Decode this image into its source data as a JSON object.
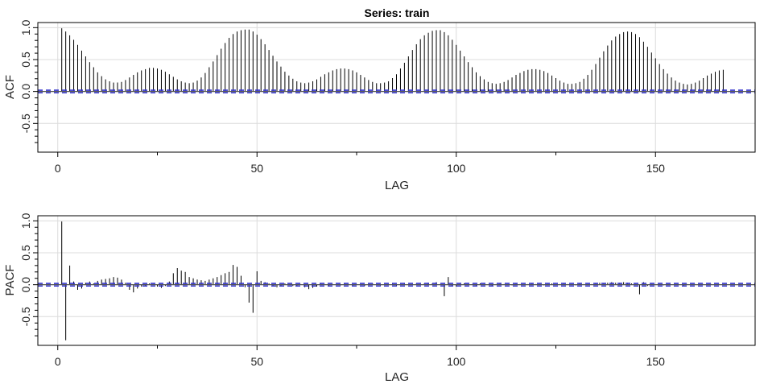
{
  "chart_data": [
    {
      "type": "bar",
      "panel": "acf",
      "title": "Series:  train",
      "xlabel": "LAG",
      "ylabel": "ACF",
      "xlim": [
        -5,
        175
      ],
      "ylim": [
        -0.95,
        1.08
      ],
      "xticks": [
        0,
        50,
        100,
        150
      ],
      "yticks": [
        -0.5,
        0,
        0.5,
        1
      ],
      "ytick_labels": [
        "-0.5",
        "0.0",
        "0.5",
        "1.0"
      ],
      "grid": true,
      "confidence_bound": 0.02,
      "lags": [
        1,
        2,
        3,
        4,
        5,
        6,
        7,
        8,
        9,
        10,
        11,
        12,
        13,
        14,
        15,
        16,
        17,
        18,
        19,
        20,
        21,
        22,
        23,
        24,
        25,
        26,
        27,
        28,
        29,
        30,
        31,
        32,
        33,
        34,
        35,
        36,
        37,
        38,
        39,
        40,
        41,
        42,
        43,
        44,
        45,
        46,
        47,
        48,
        49,
        50,
        51,
        52,
        53,
        54,
        55,
        56,
        57,
        58,
        59,
        60,
        61,
        62,
        63,
        64,
        65,
        66,
        67,
        68,
        69,
        70,
        71,
        72,
        73,
        74,
        75,
        76,
        77,
        78,
        79,
        80,
        81,
        82,
        83,
        84,
        85,
        86,
        87,
        88,
        89,
        90,
        91,
        92,
        93,
        94,
        95,
        96,
        97,
        98,
        99,
        100,
        101,
        102,
        103,
        104,
        105,
        106,
        107,
        108,
        109,
        110,
        111,
        112,
        113,
        114,
        115,
        116,
        117,
        118,
        119,
        120,
        121,
        122,
        123,
        124,
        125,
        126,
        127,
        128,
        129,
        130,
        131,
        132,
        133,
        134,
        135,
        136,
        137,
        138,
        139,
        140,
        141,
        142,
        143,
        144,
        145,
        146,
        147,
        148,
        149,
        150,
        151,
        152,
        153,
        154,
        155,
        156,
        157,
        158,
        159,
        160,
        161,
        162,
        163,
        164,
        165,
        166,
        167
      ],
      "values": [
        0.99,
        0.94,
        0.88,
        0.81,
        0.73,
        0.64,
        0.55,
        0.46,
        0.38,
        0.3,
        0.24,
        0.19,
        0.16,
        0.14,
        0.14,
        0.15,
        0.18,
        0.22,
        0.26,
        0.3,
        0.33,
        0.35,
        0.37,
        0.37,
        0.36,
        0.34,
        0.31,
        0.27,
        0.23,
        0.19,
        0.16,
        0.14,
        0.13,
        0.14,
        0.17,
        0.22,
        0.29,
        0.38,
        0.47,
        0.57,
        0.67,
        0.76,
        0.84,
        0.9,
        0.94,
        0.96,
        0.97,
        0.97,
        0.94,
        0.89,
        0.82,
        0.74,
        0.65,
        0.56,
        0.47,
        0.39,
        0.31,
        0.25,
        0.2,
        0.16,
        0.14,
        0.13,
        0.14,
        0.16,
        0.19,
        0.23,
        0.27,
        0.3,
        0.33,
        0.35,
        0.36,
        0.36,
        0.35,
        0.33,
        0.3,
        0.26,
        0.22,
        0.18,
        0.15,
        0.13,
        0.13,
        0.14,
        0.16,
        0.21,
        0.27,
        0.36,
        0.45,
        0.55,
        0.65,
        0.74,
        0.82,
        0.88,
        0.92,
        0.95,
        0.96,
        0.96,
        0.93,
        0.88,
        0.81,
        0.73,
        0.64,
        0.55,
        0.46,
        0.38,
        0.3,
        0.24,
        0.19,
        0.15,
        0.13,
        0.12,
        0.13,
        0.15,
        0.18,
        0.22,
        0.26,
        0.29,
        0.32,
        0.34,
        0.35,
        0.35,
        0.34,
        0.32,
        0.29,
        0.25,
        0.21,
        0.17,
        0.14,
        0.12,
        0.12,
        0.13,
        0.15,
        0.2,
        0.26,
        0.34,
        0.43,
        0.53,
        0.63,
        0.72,
        0.8,
        0.86,
        0.9,
        0.93,
        0.94,
        0.93,
        0.9,
        0.85,
        0.78,
        0.7,
        0.61,
        0.52,
        0.43,
        0.35,
        0.28,
        0.22,
        0.17,
        0.14,
        0.12,
        0.11,
        0.12,
        0.14,
        0.17,
        0.21,
        0.25,
        0.28,
        0.31,
        0.33,
        0.34
      ]
    },
    {
      "type": "bar",
      "panel": "pacf",
      "title": "",
      "xlabel": "LAG",
      "ylabel": "PACF",
      "xlim": [
        -5,
        175
      ],
      "ylim": [
        -0.95,
        1.08
      ],
      "xticks": [
        0,
        50,
        100,
        150
      ],
      "yticks": [
        -0.5,
        0,
        0.5,
        1
      ],
      "ytick_labels": [
        "-0.5",
        "0.0",
        "0.5",
        "1.0"
      ],
      "grid": true,
      "confidence_bound": 0.02,
      "lags": [
        1,
        2,
        3,
        4,
        5,
        6,
        7,
        8,
        9,
        10,
        11,
        12,
        13,
        14,
        15,
        16,
        17,
        18,
        19,
        20,
        21,
        22,
        23,
        24,
        25,
        26,
        27,
        28,
        29,
        30,
        31,
        32,
        33,
        34,
        35,
        36,
        37,
        38,
        39,
        40,
        41,
        42,
        43,
        44,
        45,
        46,
        47,
        48,
        49,
        50,
        51,
        52,
        53,
        54,
        55,
        56,
        57,
        58,
        59,
        60,
        61,
        62,
        63,
        64,
        65,
        66,
        67,
        68,
        69,
        70,
        71,
        72,
        73,
        74,
        75,
        76,
        77,
        78,
        79,
        80,
        81,
        82,
        83,
        84,
        85,
        86,
        87,
        88,
        89,
        90,
        91,
        92,
        93,
        94,
        95,
        96,
        97,
        98,
        99,
        100,
        101,
        102,
        103,
        104,
        105,
        106,
        107,
        108,
        109,
        110,
        111,
        112,
        113,
        114,
        115,
        116,
        117,
        118,
        119,
        120,
        121,
        122,
        123,
        124,
        125,
        126,
        127,
        128,
        129,
        130,
        131,
        132,
        133,
        134,
        135,
        136,
        137,
        138,
        139,
        140,
        141,
        142,
        143,
        144,
        145,
        146,
        147,
        148,
        149,
        150,
        151,
        152,
        153,
        154,
        155,
        156,
        157,
        158,
        159,
        160,
        161,
        162,
        163,
        164,
        165,
        166,
        167
      ],
      "values": [
        0.99,
        -0.87,
        0.3,
        0.05,
        -0.08,
        -0.06,
        0.03,
        0.05,
        0.02,
        0.06,
        0.08,
        0.09,
        0.1,
        0.12,
        0.11,
        0.08,
        0.03,
        -0.08,
        -0.12,
        -0.06,
        -0.03,
        -0.02,
        0.02,
        0.01,
        -0.03,
        -0.05,
        -0.02,
        0.05,
        0.18,
        0.26,
        0.22,
        0.2,
        0.12,
        0.1,
        0.08,
        0.07,
        0.06,
        0.08,
        0.1,
        0.12,
        0.15,
        0.18,
        0.2,
        0.31,
        0.28,
        0.14,
        -0.04,
        -0.28,
        -0.44,
        0.21,
        0.06,
        0.04,
        0.02,
        -0.02,
        -0.04,
        -0.03,
        0.02,
        0.01,
        -0.02,
        -0.03,
        0.01,
        -0.04,
        -0.07,
        -0.05,
        -0.03,
        0.02,
        0.01,
        -0.02,
        0.01,
        0.0,
        -0.01,
        0.02,
        0.01,
        -0.01,
        0.01,
        0.0,
        -0.02,
        0.01,
        0.02,
        0.01,
        -0.01,
        0.0,
        0.01,
        0.02,
        -0.01,
        0.01,
        0.02,
        0.0,
        0.01,
        0.02,
        0.01,
        0.02,
        0.03,
        0.02,
        0.04,
        0.01,
        -0.18,
        0.12,
        -0.02,
        -0.03,
        0.01,
        0.02,
        0.0,
        0.01,
        -0.01,
        0.02,
        0.01,
        0.0,
        -0.02,
        0.01,
        0.02,
        0.01,
        0.0,
        -0.01,
        0.02,
        0.01,
        0.0,
        0.01,
        0.02,
        0.01,
        0.0,
        -0.01,
        0.01,
        0.02,
        0.0,
        0.01,
        0.02,
        0.01,
        0.0,
        -0.01,
        0.02,
        0.01,
        0.0,
        0.01,
        0.02,
        0.03,
        0.02,
        0.03,
        0.04,
        0.03,
        0.03,
        0.04,
        0.03,
        0.02,
        0.01,
        -0.15,
        0.04,
        -0.02,
        0.01,
        0.0,
        0.01,
        -0.01,
        0.01,
        0.0,
        0.01,
        0.0,
        -0.01,
        0.01,
        0.0,
        0.01,
        0.0,
        0.01,
        0.0,
        0.01,
        0.0,
        0.01,
        0.0
      ]
    }
  ],
  "colors": {
    "spike": "#000000",
    "bound": "#3333cc",
    "zero_line": "#555555",
    "grid": "#dcdcdc",
    "frame": "#000000"
  }
}
